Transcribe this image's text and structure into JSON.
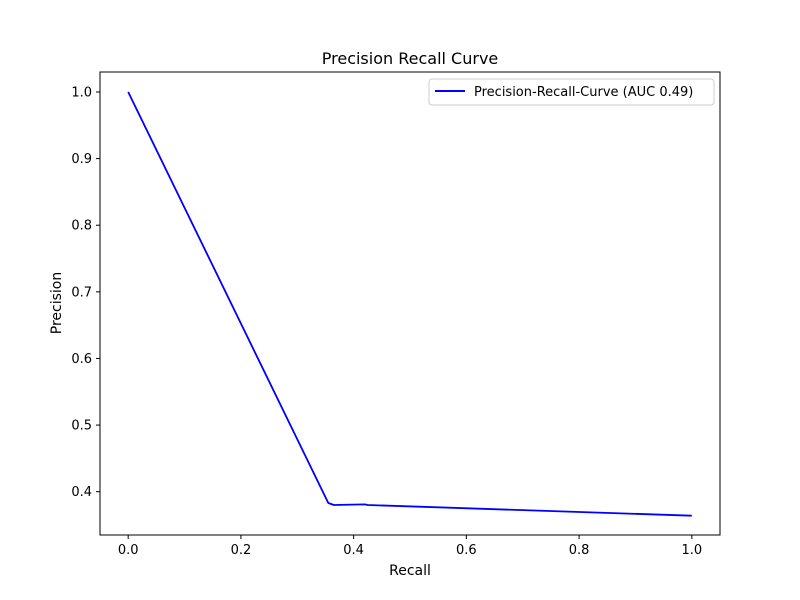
{
  "chart_data": {
    "type": "line",
    "title": "Precision Recall Curve",
    "xlabel": "Recall",
    "ylabel": "Precision",
    "xlim": [
      -0.05,
      1.05
    ],
    "ylim": [
      0.335,
      1.03
    ],
    "xticks": [
      0.0,
      0.2,
      0.4,
      0.6,
      0.8,
      1.0
    ],
    "xtick_labels": [
      "0.0",
      "0.2",
      "0.4",
      "0.6",
      "0.8",
      "1.0"
    ],
    "yticks": [
      0.4,
      0.5,
      0.6,
      0.7,
      0.8,
      0.9,
      1.0
    ],
    "ytick_labels": [
      "0.4",
      "0.5",
      "0.6",
      "0.7",
      "0.8",
      "0.9",
      "1.0"
    ],
    "grid": false,
    "legend_position": "upper-right",
    "series": [
      {
        "name": "Precision-Recall-Curve (AUC 0.49)",
        "color": "#0000ff",
        "x": [
          0.0,
          0.355,
          0.365,
          0.42,
          0.425,
          1.0
        ],
        "y": [
          1.0,
          0.383,
          0.38,
          0.381,
          0.38,
          0.364
        ]
      }
    ]
  }
}
